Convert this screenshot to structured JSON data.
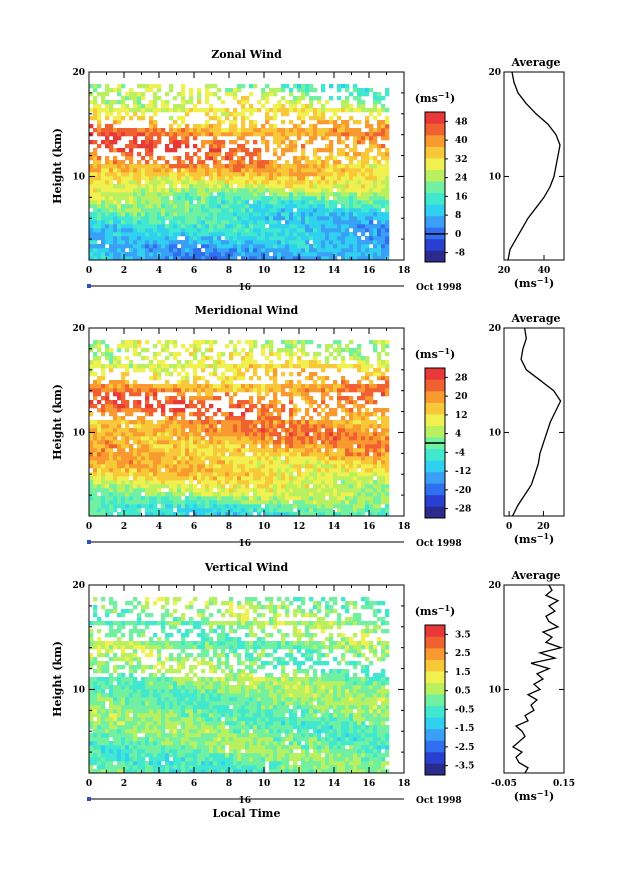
{
  "chart_data": [
    {
      "type": "heatmap",
      "title": "Zonal Wind",
      "ylabel": "Height (km)",
      "xlabel": "",
      "xlim": [
        0,
        18
      ],
      "ylim": [
        2,
        20
      ],
      "x_ticks": [
        "0",
        "2",
        "4",
        "6",
        "8",
        "10",
        "12",
        "14",
        "16",
        "18"
      ],
      "y_ticks": [
        "10",
        "20"
      ],
      "date_day": "16",
      "date_label": "Oct 1998",
      "colorbar": {
        "unit": "(ms⁻¹)",
        "ticks": [
          "-8",
          "0",
          "8",
          "16",
          "24",
          "32",
          "40",
          "48"
        ],
        "min": -12,
        "max": 52,
        "zero_line": 0
      },
      "profile_by_height": [
        [
          2,
          8
        ],
        [
          3,
          10
        ],
        [
          4,
          12
        ],
        [
          5,
          14
        ],
        [
          6,
          16
        ],
        [
          7,
          20
        ],
        [
          8,
          24
        ],
        [
          9,
          30
        ],
        [
          10,
          36
        ],
        [
          11,
          40
        ],
        [
          12,
          44
        ],
        [
          13,
          46
        ],
        [
          14,
          44
        ],
        [
          15,
          40
        ],
        [
          16,
          34
        ],
        [
          17,
          30
        ],
        [
          18,
          26
        ],
        [
          19,
          22
        ],
        [
          20,
          20
        ]
      ],
      "average": {
        "title": "Average",
        "ylabel": "",
        "xlim": [
          20,
          50
        ],
        "x_ticks": [
          "20",
          "40"
        ],
        "y_ticks": [
          "10",
          "20"
        ],
        "unit": "(ms⁻¹)",
        "heights": [
          2,
          3,
          4,
          5,
          6,
          7,
          8,
          9,
          10,
          11,
          12,
          13,
          14,
          15,
          16,
          17,
          18,
          19,
          20
        ],
        "values": [
          22,
          23,
          26,
          29,
          32,
          36,
          40,
          43,
          45,
          46,
          47,
          48,
          46,
          42,
          36,
          31,
          27,
          25,
          24
        ]
      }
    },
    {
      "type": "heatmap",
      "title": "Meridional Wind",
      "ylabel": "Height (km)",
      "xlabel": "",
      "xlim": [
        0,
        18
      ],
      "ylim": [
        2,
        20
      ],
      "x_ticks": [
        "0",
        "2",
        "4",
        "6",
        "8",
        "10",
        "12",
        "14",
        "16",
        "18"
      ],
      "y_ticks": [
        "10",
        "20"
      ],
      "date_day": "16",
      "date_label": "Oct 1998",
      "colorbar": {
        "unit": "(ms⁻¹)",
        "ticks": [
          "-28",
          "-20",
          "-12",
          "-4",
          "4",
          "12",
          "20",
          "28"
        ],
        "min": -32,
        "max": 32,
        "zero_line": 0
      },
      "profile_by_height": [
        [
          2,
          -6
        ],
        [
          3,
          -2
        ],
        [
          4,
          4
        ],
        [
          5,
          8
        ],
        [
          6,
          12
        ],
        [
          7,
          14
        ],
        [
          8,
          16
        ],
        [
          9,
          18
        ],
        [
          10,
          20
        ],
        [
          11,
          18
        ],
        [
          12,
          22
        ],
        [
          13,
          24
        ],
        [
          14,
          20
        ],
        [
          15,
          16
        ],
        [
          16,
          12
        ],
        [
          17,
          8
        ],
        [
          18,
          6
        ],
        [
          19,
          6
        ],
        [
          20,
          6
        ]
      ],
      "average": {
        "title": "Average",
        "ylabel": "",
        "xlim": [
          -3,
          32
        ],
        "x_ticks": [
          "0",
          "20"
        ],
        "y_ticks": [
          "10",
          "20"
        ],
        "unit": "(ms⁻¹)",
        "heights": [
          2,
          3,
          4,
          5,
          6,
          7,
          8,
          9,
          10,
          11,
          12,
          13,
          14,
          15,
          16,
          17,
          18,
          19,
          20
        ],
        "values": [
          2,
          5,
          9,
          13,
          15,
          17,
          18,
          20,
          22,
          24,
          27,
          30,
          26,
          18,
          10,
          7,
          8,
          10,
          9
        ]
      }
    },
    {
      "type": "heatmap",
      "title": "Vertical Wind",
      "ylabel": "Height (km)",
      "xlabel": "Local Time",
      "xlim": [
        0,
        18
      ],
      "ylim": [
        2,
        20
      ],
      "x_ticks": [
        "0",
        "2",
        "4",
        "6",
        "8",
        "10",
        "12",
        "14",
        "16",
        "18"
      ],
      "y_ticks": [
        "10",
        "20"
      ],
      "date_day": "16",
      "date_label": "Oct 1998",
      "colorbar": {
        "unit": "(ms⁻¹)",
        "ticks": [
          "-3.5",
          "-2.5",
          "-1.5",
          "-0.5",
          "0.5",
          "1.5",
          "2.5",
          "3.5"
        ],
        "min": -4,
        "max": 4,
        "zero_line": null
      },
      "profile_by_height": [
        [
          2,
          -0.2
        ],
        [
          4,
          -0.1
        ],
        [
          6,
          0.0
        ],
        [
          8,
          0.1
        ],
        [
          10,
          0.2
        ],
        [
          12,
          0.1
        ],
        [
          14,
          0.3
        ],
        [
          16,
          0.2
        ],
        [
          18,
          0.3
        ],
        [
          20,
          0.2
        ]
      ],
      "average": {
        "title": "Average",
        "ylabel": "",
        "xlim": [
          -0.05,
          0.15
        ],
        "x_ticks": [
          "-0.05",
          "0.15"
        ],
        "y_ticks": [
          "10",
          "20"
        ],
        "unit": "(ms⁻¹)",
        "heights": [
          2,
          2.5,
          3,
          3.5,
          4,
          4.5,
          5,
          5.5,
          6,
          6.5,
          7,
          7.5,
          8,
          8.5,
          9,
          9.5,
          10,
          10.5,
          11,
          11.5,
          12,
          12.5,
          13,
          13.5,
          14,
          14.5,
          15,
          15.5,
          16,
          16.5,
          17,
          17.5,
          18,
          18.5,
          19,
          19.5,
          20
        ],
        "values": [
          0.02,
          0.03,
          0.0,
          -0.01,
          0.01,
          -0.02,
          0.0,
          0.02,
          0.01,
          -0.01,
          0.03,
          0.02,
          0.05,
          0.04,
          0.06,
          0.03,
          0.07,
          0.05,
          0.08,
          0.06,
          0.1,
          0.04,
          0.12,
          0.07,
          0.14,
          0.09,
          0.11,
          0.08,
          0.13,
          0.1,
          0.09,
          0.12,
          0.1,
          0.13,
          0.09,
          0.11,
          0.1
        ]
      }
    }
  ]
}
